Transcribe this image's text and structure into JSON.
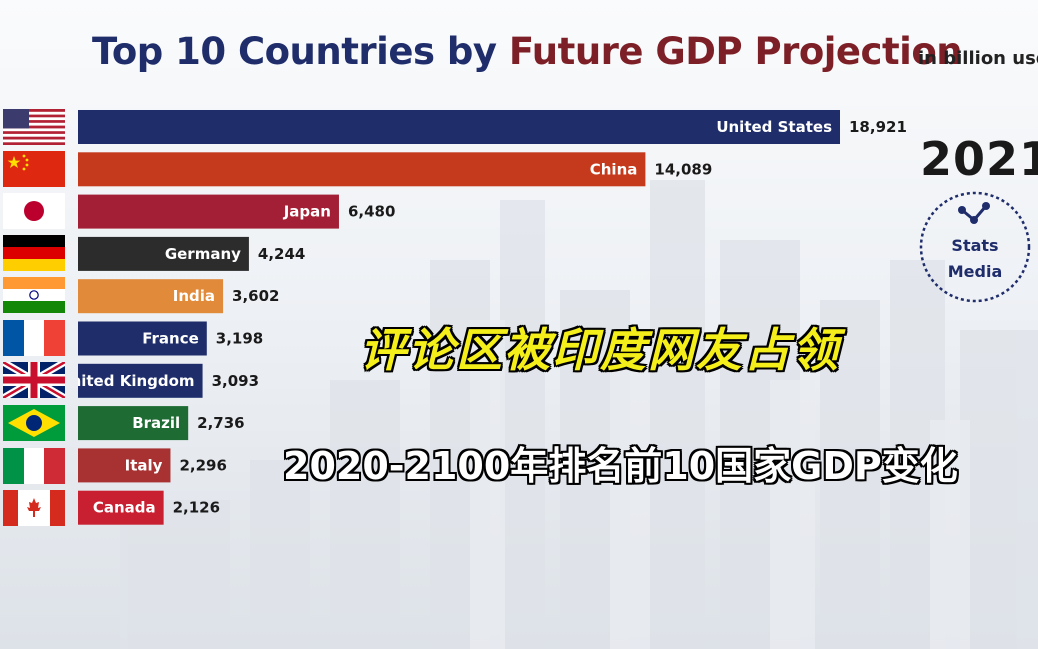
{
  "header": {
    "title_part1": "Top 10 Countries by",
    "title_part2": "Future GDP Projection",
    "unit": "in billion usd"
  },
  "year": "2021",
  "logo": {
    "line1": "Stats",
    "line2": "Media",
    "icon": "network-nodes-icon"
  },
  "overlay": {
    "caption1": "评论区被印度网友占领",
    "caption2": "2020-2100年排名前10国家GDP变化"
  },
  "chart_data": {
    "type": "bar",
    "orientation": "horizontal",
    "title": "Top 10 Countries by Future GDP Projection",
    "unit": "in billion usd",
    "year": "2021",
    "categories": [
      "United States",
      "China",
      "Japan",
      "Germany",
      "India",
      "France",
      "United Kingdom",
      "Brazil",
      "Italy",
      "Canada"
    ],
    "values": [
      18921,
      14089,
      6480,
      4244,
      3602,
      3198,
      3093,
      2736,
      2296,
      2126
    ],
    "value_labels": [
      "18,921",
      "14,089",
      "6,480",
      "4,244",
      "3,602",
      "3,198",
      "3,093",
      "2,736",
      "2,296",
      "2,126"
    ],
    "colors": [
      "#1f2d6b",
      "#c53a1c",
      "#a21f35",
      "#2c2c2c",
      "#e08a3a",
      "#1f2d6b",
      "#1f2d6b",
      "#1f6b34",
      "#a83232",
      "#c82030"
    ],
    "flags": [
      "us-flag-icon",
      "china-flag-icon",
      "japan-flag-icon",
      "germany-flag-icon",
      "india-flag-icon",
      "france-flag-icon",
      "uk-flag-icon",
      "brazil-flag-icon",
      "italy-flag-icon",
      "canada-flag-icon"
    ],
    "xlabel": "",
    "ylabel": "",
    "grid": false,
    "legend": "none"
  }
}
